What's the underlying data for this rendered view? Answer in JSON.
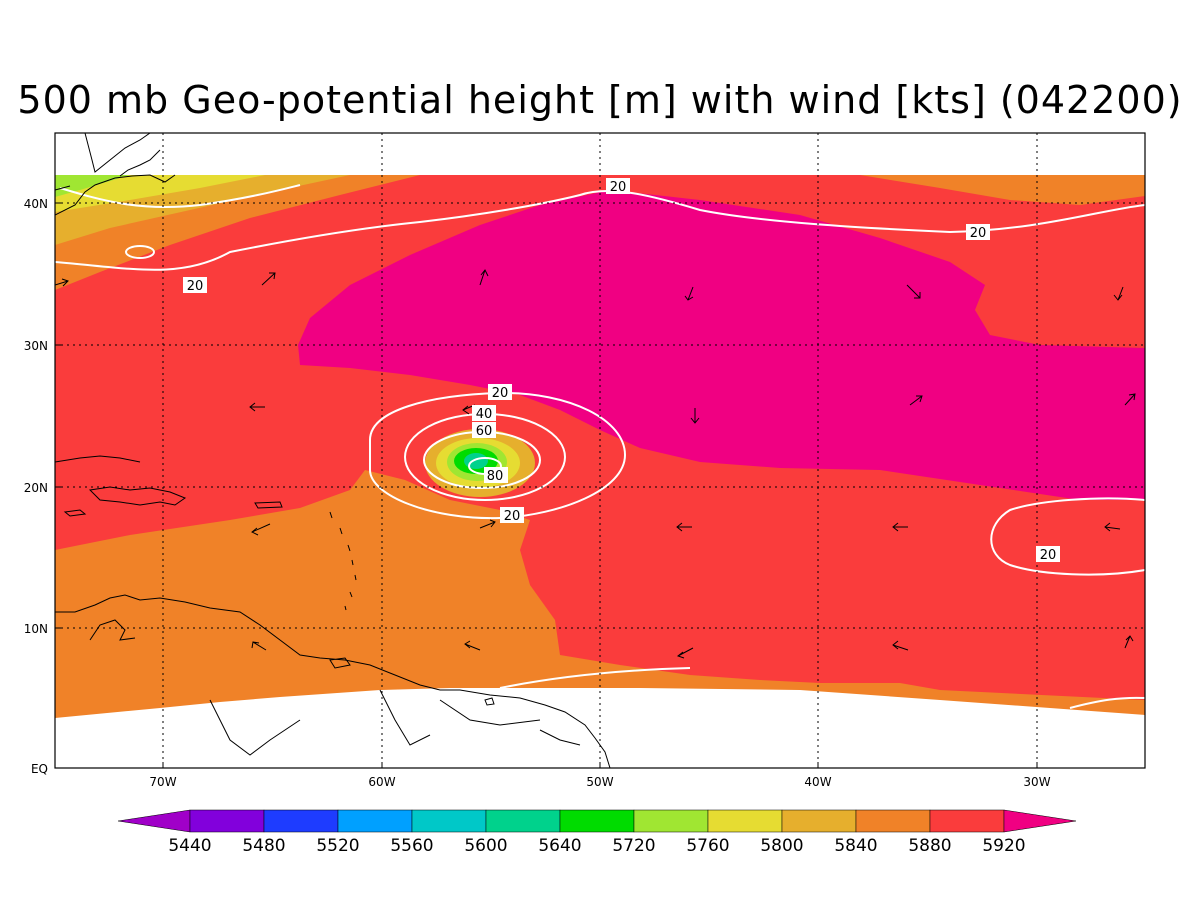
{
  "title": "500 mb Geo-potential height [m] with wind [kts] (042200)",
  "lat_labels": [
    "40N",
    "30N",
    "20N",
    "10N",
    "EQ"
  ],
  "lon_labels": [
    "70W",
    "60W",
    "50W",
    "40W",
    "30W"
  ],
  "contour_labels": [
    "20",
    "20",
    "20",
    "20",
    "40",
    "60",
    "80",
    "20",
    "20"
  ],
  "colorbar": {
    "levels": [
      "5440",
      "5480",
      "5520",
      "5560",
      "5600",
      "5640",
      "5720",
      "5760",
      "5800",
      "5840",
      "5880",
      "5920"
    ],
    "colors": [
      "#a000c8",
      "#8200dc",
      "#1e3cff",
      "#00a0ff",
      "#00c8c8",
      "#00d28c",
      "#00dc00",
      "#a0e632",
      "#e6dc32",
      "#e6af2d",
      "#f08228",
      "#fa3c3c",
      "#f00082"
    ]
  },
  "colors": {
    "z5920": "#f00082",
    "z5880": "#fa3c3c",
    "z5840": "#f08228",
    "z5800": "#e6af2d",
    "z5760": "#e6dc32",
    "z5720": "#a0e632",
    "z5640": "#00dc00",
    "z5600": "#00d28c",
    "isotach": "#ffffff",
    "coast": "#000000"
  }
}
